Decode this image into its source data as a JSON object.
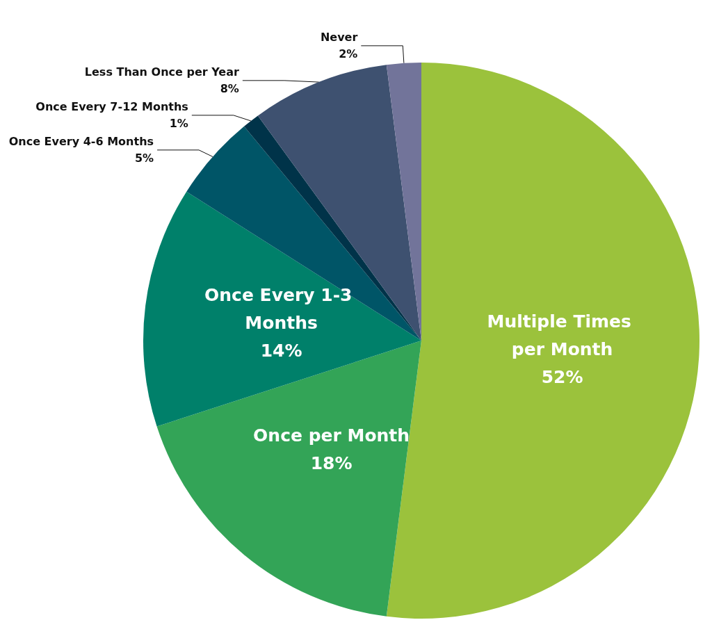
{
  "chart_data": {
    "type": "pie",
    "categories": [
      "Multiple Times per Month",
      "Once per Month",
      "Once Every 1-3 Months",
      "Once Every 4-6 Months",
      "Once Every 7-12 Months",
      "Less Than Once per Year",
      "Never"
    ],
    "values": [
      52,
      18,
      14,
      5,
      1,
      8,
      2
    ],
    "value_labels": [
      "52%",
      "18%",
      "14%",
      "5%",
      "1%",
      "8%",
      "2%"
    ],
    "colors": [
      "#9bc23c",
      "#33a457",
      "#00806a",
      "#005567",
      "#003349",
      "#3e5170",
      "#72749a"
    ]
  }
}
